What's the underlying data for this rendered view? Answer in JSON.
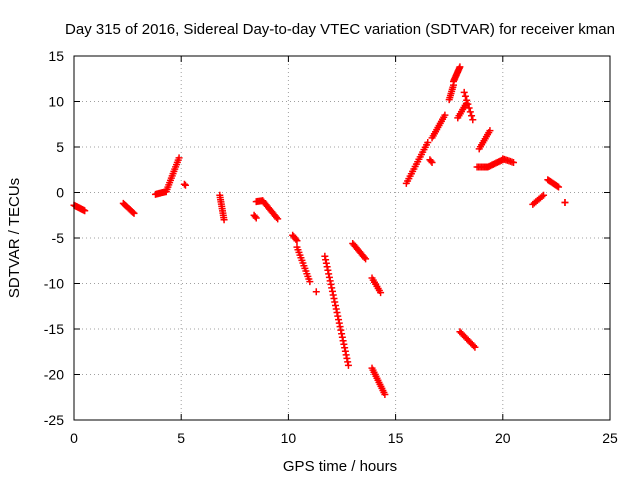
{
  "chart_data": {
    "type": "scatter",
    "title": "Day 315 of 2016, Sidereal Day-to-day VTEC variation (SDTVAR) for receiver kman",
    "xlabel": "GPS time / hours",
    "ylabel": "SDTVAR / TECUs",
    "xlim": [
      0,
      25
    ],
    "ylim": [
      -25,
      15
    ],
    "xticks": [
      "0",
      "5",
      "10",
      "15",
      "20",
      "25"
    ],
    "yticks": [
      "-25",
      "-20",
      "-15",
      "-10",
      "-5",
      "0",
      "5",
      "10",
      "15"
    ],
    "grid": true,
    "marker": "plus",
    "color": "#ff0000",
    "segments": [
      {
        "x0": 0.0,
        "x1": 0.5,
        "y0": -1.4,
        "y1": -2.0,
        "n": 14
      },
      {
        "x0": 2.3,
        "x1": 2.8,
        "y0": -1.2,
        "y1": -2.3,
        "n": 12
      },
      {
        "x0": 3.8,
        "x1": 4.3,
        "y0": -0.2,
        "y1": 0.1,
        "n": 10
      },
      {
        "x0": 4.3,
        "x1": 4.9,
        "y0": 0.1,
        "y1": 3.8,
        "n": 16
      },
      {
        "x0": 5.15,
        "x1": 5.2,
        "y0": 0.9,
        "y1": 0.8,
        "n": 2
      },
      {
        "x0": 6.8,
        "x1": 7.0,
        "y0": -0.3,
        "y1": -3.0,
        "n": 12
      },
      {
        "x0": 8.4,
        "x1": 8.5,
        "y0": -2.5,
        "y1": -2.8,
        "n": 3
      },
      {
        "x0": 8.5,
        "x1": 8.8,
        "y0": -1.0,
        "y1": -0.9,
        "n": 6
      },
      {
        "x0": 8.8,
        "x1": 9.5,
        "y0": -0.9,
        "y1": -2.9,
        "n": 14
      },
      {
        "x0": 10.2,
        "x1": 10.4,
        "y0": -4.7,
        "y1": -5.3,
        "n": 5
      },
      {
        "x0": 10.4,
        "x1": 11.0,
        "y0": -6.0,
        "y1": -9.8,
        "n": 14
      },
      {
        "x0": 11.3,
        "x1": 11.3,
        "y0": -10.9,
        "y1": -10.9,
        "n": 1
      },
      {
        "x0": 11.7,
        "x1": 12.8,
        "y0": -7.0,
        "y1": -19.0,
        "n": 32
      },
      {
        "x0": 13.0,
        "x1": 13.6,
        "y0": -5.6,
        "y1": -7.3,
        "n": 12
      },
      {
        "x0": 13.9,
        "x1": 14.3,
        "y0": -9.4,
        "y1": -11.0,
        "n": 8
      },
      {
        "x0": 13.9,
        "x1": 14.5,
        "y0": -19.3,
        "y1": -22.2,
        "n": 14
      },
      {
        "x0": 15.5,
        "x1": 16.5,
        "y0": 1.0,
        "y1": 5.5,
        "n": 18
      },
      {
        "x0": 16.6,
        "x1": 16.7,
        "y0": 3.6,
        "y1": 3.3,
        "n": 3
      },
      {
        "x0": 16.7,
        "x1": 17.3,
        "y0": 6.0,
        "y1": 8.5,
        "n": 12
      },
      {
        "x0": 17.5,
        "x1": 17.7,
        "y0": 10.2,
        "y1": 11.8,
        "n": 8
      },
      {
        "x0": 17.7,
        "x1": 18.0,
        "y0": 12.2,
        "y1": 13.8,
        "n": 12
      },
      {
        "x0": 17.9,
        "x1": 18.3,
        "y0": 8.2,
        "y1": 9.8,
        "n": 8
      },
      {
        "x0": 18.0,
        "x1": 18.7,
        "y0": -15.3,
        "y1": -17.0,
        "n": 12
      },
      {
        "x0": 18.2,
        "x1": 18.6,
        "y0": 11.0,
        "y1": 8.0,
        "n": 8
      },
      {
        "x0": 18.9,
        "x1": 19.4,
        "y0": 4.8,
        "y1": 6.8,
        "n": 10
      },
      {
        "x0": 18.8,
        "x1": 19.3,
        "y0": 2.8,
        "y1": 2.8,
        "n": 8
      },
      {
        "x0": 19.3,
        "x1": 20.0,
        "y0": 2.8,
        "y1": 3.6,
        "n": 12
      },
      {
        "x0": 20.0,
        "x1": 20.5,
        "y0": 3.7,
        "y1": 3.3,
        "n": 8
      },
      {
        "x0": 21.4,
        "x1": 21.9,
        "y0": -1.3,
        "y1": -0.3,
        "n": 8
      },
      {
        "x0": 22.1,
        "x1": 22.6,
        "y0": 1.4,
        "y1": 0.6,
        "n": 10
      },
      {
        "x0": 22.9,
        "x1": 22.9,
        "y0": -1.1,
        "y1": -1.1,
        "n": 2
      }
    ]
  }
}
